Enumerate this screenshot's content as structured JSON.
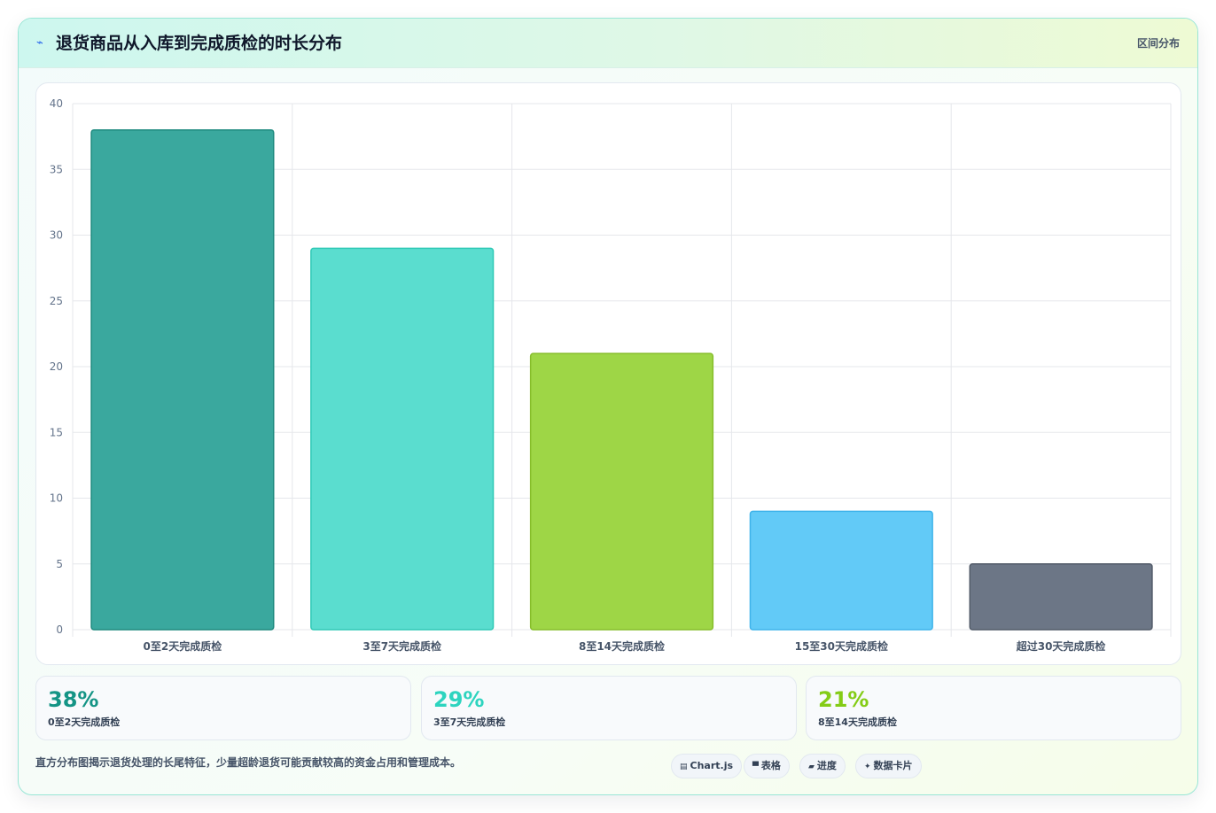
{
  "header": {
    "icon": "lightning-icon",
    "title": "退货商品从入库到完成质检的时长分布",
    "tag": "区间分布"
  },
  "chart_data": {
    "type": "bar",
    "categories": [
      "0至2天完成质检",
      "3至7天完成质检",
      "8至14天完成质检",
      "15至30天完成质检",
      "超过30天完成质检"
    ],
    "values": [
      38,
      29,
      21,
      9,
      5
    ],
    "colors": [
      "#3aa89e",
      "#5addcf",
      "#9ed646",
      "#62caf7",
      "#6c7686"
    ],
    "border_colors": [
      "#1e8a7f",
      "#30c9b6",
      "#86bd2a",
      "#3eb3ea",
      "#525b69"
    ],
    "ylim": [
      0,
      40
    ],
    "y_ticks": [
      0,
      5,
      10,
      15,
      20,
      25,
      30,
      35,
      40
    ],
    "grid": true,
    "legend": "none"
  },
  "stats": [
    {
      "value": "38%",
      "label": "0至2天完成质检",
      "color": "#149485"
    },
    {
      "value": "29%",
      "label": "3至7天完成质检",
      "color": "#2dd4bf"
    },
    {
      "value": "21%",
      "label": "8至14天完成质检",
      "color": "#84cc16"
    }
  ],
  "footer": {
    "note": "直方分布图揭示退货处理的长尾特征，少量超龄退货可能贡献较高的资金占用和管理成本。",
    "chips": [
      {
        "icon": "chart-icon",
        "glyph": "▤",
        "label": "Chart.js"
      },
      {
        "icon": "table-icon",
        "glyph": "▀",
        "label": "表格"
      },
      {
        "icon": "progress-icon",
        "glyph": "▰",
        "label": "进度"
      },
      {
        "icon": "card-icon",
        "glyph": "✦",
        "label": "数据卡片"
      }
    ]
  }
}
